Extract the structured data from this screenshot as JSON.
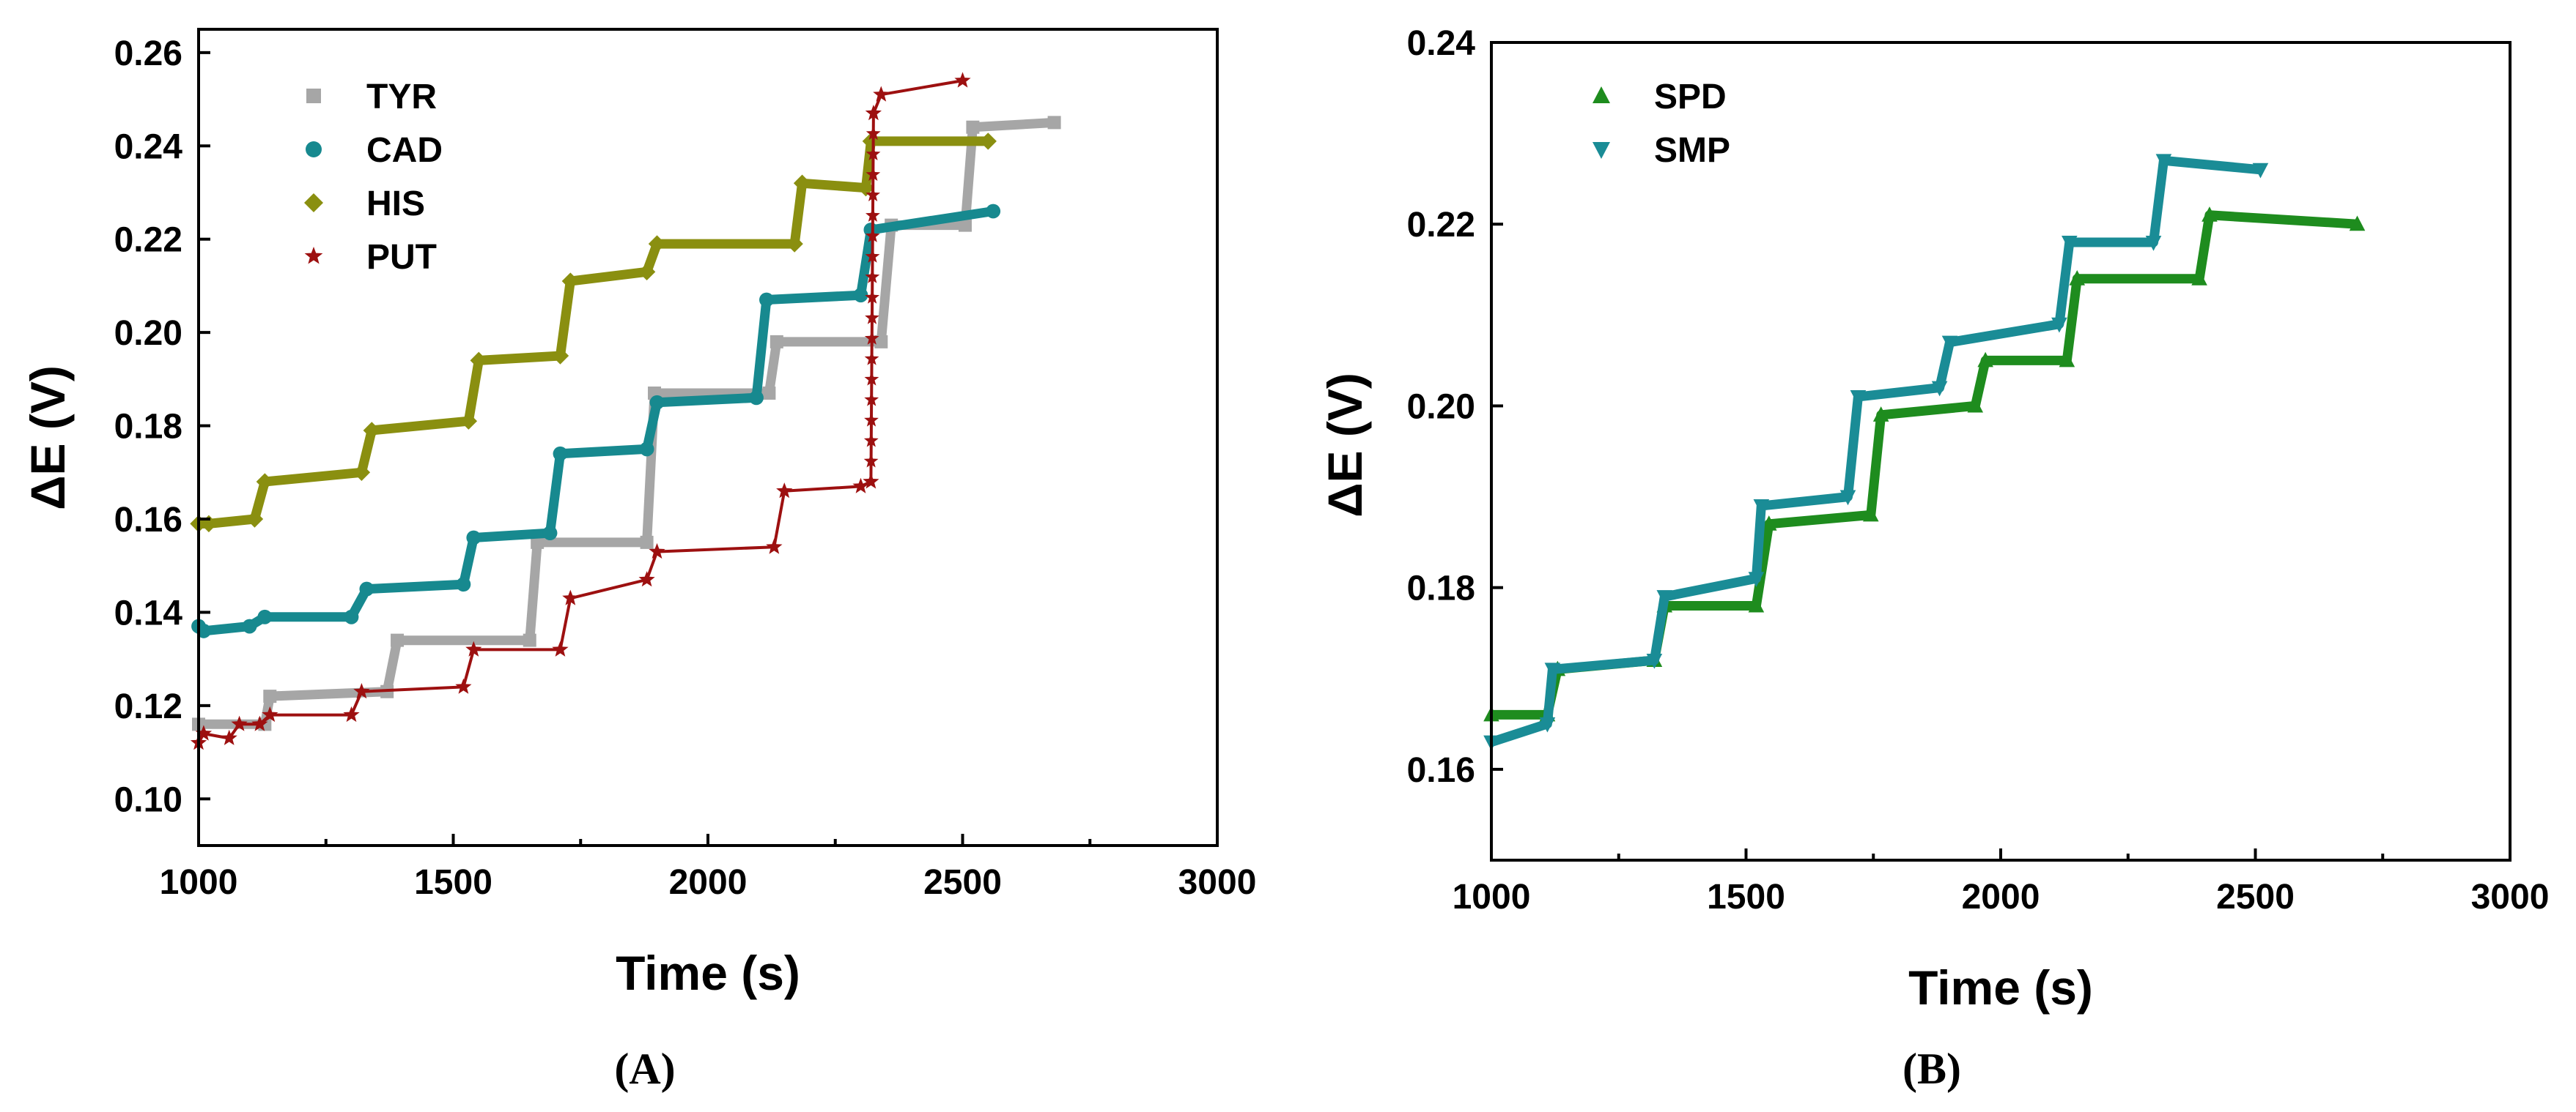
{
  "colors": {
    "TYR": "#a6a6a6",
    "CAD": "#17898f",
    "HIS": "#8a8f10",
    "PUT": "#9d1010",
    "SPD": "#1e8c1e",
    "SMP": "#1a8c96"
  },
  "chart_data": [
    {
      "type": "line",
      "panel_label": "(A)",
      "title": "",
      "xlabel": "Time (s)",
      "ylabel": "ΔE (V)",
      "xlim": [
        1000,
        3000
      ],
      "ylim": [
        0.09,
        0.265
      ],
      "xticks": [
        1000,
        1500,
        2000,
        2500,
        3000
      ],
      "xtick_labels": [
        "1000",
        "1500",
        "2000",
        "2500",
        "3000"
      ],
      "yticks": [
        0.1,
        0.12,
        0.14,
        0.16,
        0.18,
        0.2,
        0.22,
        0.24,
        0.26
      ],
      "ytick_labels": [
        "0.10",
        "0.12",
        "0.14",
        "0.16",
        "0.18",
        "0.20",
        "0.22",
        "0.24",
        "0.26"
      ],
      "legend_position": "top-left",
      "series": [
        {
          "name": "TYR",
          "marker": "square",
          "x": [
            1000,
            1130,
            1140,
            1370,
            1390,
            1650,
            1665,
            1880,
            1895,
            2120,
            2135,
            2340,
            2360,
            2505,
            2520,
            2680
          ],
          "y": [
            0.116,
            0.116,
            0.122,
            0.123,
            0.134,
            0.134,
            0.155,
            0.155,
            0.187,
            0.187,
            0.198,
            0.198,
            0.223,
            0.223,
            0.244,
            0.245
          ]
        },
        {
          "name": "CAD",
          "marker": "circle",
          "x": [
            1000,
            1010,
            1100,
            1130,
            1300,
            1330,
            1520,
            1540,
            1690,
            1710,
            1880,
            1900,
            2095,
            2115,
            2300,
            2320,
            2560
          ],
          "y": [
            0.137,
            0.136,
            0.137,
            0.139,
            0.139,
            0.145,
            0.146,
            0.156,
            0.157,
            0.174,
            0.175,
            0.185,
            0.186,
            0.207,
            0.208,
            0.222,
            0.226
          ]
        },
        {
          "name": "HIS",
          "marker": "diamond",
          "x": [
            1000,
            1020,
            1110,
            1130,
            1320,
            1340,
            1530,
            1550,
            1710,
            1730,
            1880,
            1900,
            2170,
            2185,
            2310,
            2320,
            2550
          ],
          "y": [
            0.159,
            0.159,
            0.16,
            0.168,
            0.17,
            0.179,
            0.181,
            0.194,
            0.195,
            0.211,
            0.213,
            0.219,
            0.219,
            0.232,
            0.231,
            0.241,
            0.241
          ]
        },
        {
          "name": "PUT",
          "marker": "star",
          "x": [
            1000,
            1010,
            1060,
            1080,
            1120,
            1140,
            1300,
            1320,
            1520,
            1540,
            1710,
            1730,
            1880,
            1900,
            2130,
            2150,
            2300,
            2320,
            2325,
            2340,
            2500
          ],
          "y": [
            0.112,
            0.114,
            0.113,
            0.116,
            0.116,
            0.118,
            0.118,
            0.123,
            0.124,
            0.132,
            0.132,
            0.143,
            0.147,
            0.153,
            0.154,
            0.166,
            0.167,
            0.168,
            0.247,
            0.251,
            0.254
          ]
        }
      ]
    },
    {
      "type": "line",
      "panel_label": "(B)",
      "title": "",
      "xlabel": "Time (s)",
      "ylabel": "ΔE (V)",
      "xlim": [
        1000,
        3000
      ],
      "ylim": [
        0.15,
        0.24
      ],
      "xticks": [
        1000,
        1500,
        2000,
        2500,
        3000
      ],
      "xtick_labels": [
        "1000",
        "1500",
        "2000",
        "2500",
        "3000"
      ],
      "yticks": [
        0.16,
        0.18,
        0.2,
        0.22,
        0.24
      ],
      "ytick_labels": [
        "0.16",
        "0.18",
        "0.20",
        "0.22",
        "0.24"
      ],
      "legend_position": "top-left",
      "series": [
        {
          "name": "SPD",
          "marker": "triangle-up",
          "x": [
            1000,
            1110,
            1130,
            1320,
            1340,
            1520,
            1545,
            1745,
            1765,
            1950,
            1970,
            2130,
            2150,
            2390,
            2410,
            2700
          ],
          "y": [
            0.166,
            0.166,
            0.171,
            0.172,
            0.178,
            0.178,
            0.187,
            0.188,
            0.199,
            0.2,
            0.205,
            0.205,
            0.214,
            0.214,
            0.221,
            0.22
          ]
        },
        {
          "name": "SMP",
          "marker": "triangle-down",
          "x": [
            1000,
            1110,
            1120,
            1320,
            1340,
            1520,
            1530,
            1700,
            1720,
            1880,
            1900,
            2115,
            2135,
            2300,
            2320,
            2510
          ],
          "y": [
            0.163,
            0.165,
            0.171,
            0.172,
            0.179,
            0.181,
            0.189,
            0.19,
            0.201,
            0.202,
            0.207,
            0.209,
            0.218,
            0.218,
            0.227,
            0.226
          ]
        }
      ]
    }
  ]
}
